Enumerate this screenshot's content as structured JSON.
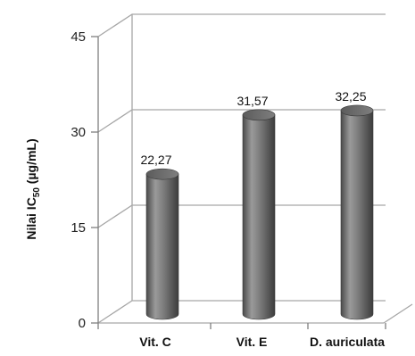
{
  "chart_data": {
    "type": "bar",
    "categories": [
      "Vit. C",
      "Vit. E",
      "D. auriculata"
    ],
    "values": [
      22.27,
      31.57,
      32.25
    ],
    "data_labels": [
      "22,27",
      "31,57",
      "32,25"
    ],
    "ylabel": {
      "main": "Nilai  IC",
      "sub": "50",
      "unit": " (µg/mL)"
    },
    "yticks": [
      {
        "value": 0,
        "label": "0"
      },
      {
        "value": 15,
        "label": "15"
      },
      {
        "value": 30,
        "label": "30"
      },
      {
        "value": 45,
        "label": "45"
      }
    ],
    "ylim": [
      0,
      45
    ],
    "grid": true,
    "style": "3d-cylinder",
    "colors": {
      "bar": "#707070",
      "grid": "#a6a6a6",
      "axis": "#7f7f7f"
    }
  }
}
